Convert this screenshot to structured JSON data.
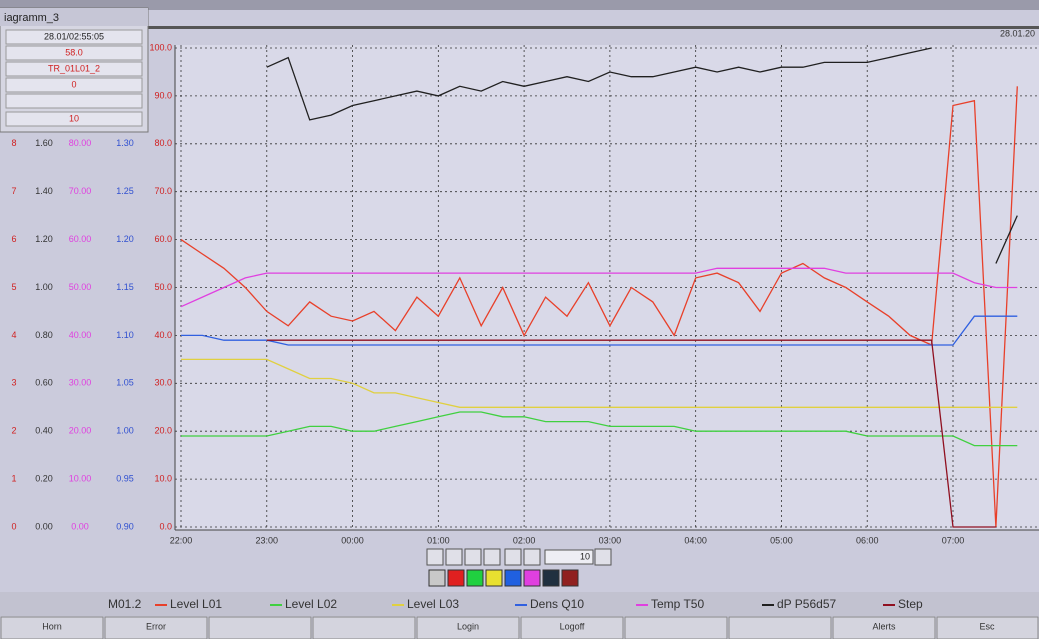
{
  "window": {
    "title": "iagramm_3",
    "cursor_time": "28.01/02:55:05",
    "cursor_value": "58.0",
    "tag": "TR_01L01_2",
    "offset": "0",
    "span": "10",
    "date": "28.01.20"
  },
  "chart_data": {
    "type": "line",
    "x": [
      "22:00",
      "22:15",
      "22:30",
      "22:45",
      "23:00",
      "23:15",
      "23:30",
      "23:45",
      "00:00",
      "00:15",
      "00:30",
      "00:45",
      "01:00",
      "01:15",
      "01:30",
      "01:45",
      "02:00",
      "02:15",
      "02:30",
      "02:45",
      "03:00",
      "03:15",
      "03:30",
      "03:45",
      "04:00",
      "04:15",
      "04:30",
      "04:45",
      "05:00",
      "05:15",
      "05:30",
      "05:45",
      "06:00",
      "06:15",
      "06:30",
      "06:45",
      "07:00",
      "07:15",
      "07:30",
      "07:45"
    ],
    "xticks": [
      "22:00",
      "23:00",
      "00:00",
      "01:00",
      "02:00",
      "03:00",
      "04:00",
      "05:00",
      "06:00",
      "07:00"
    ],
    "ylim": [
      0,
      100
    ],
    "yticks": [
      {
        "value": 0,
        "label": "0.0"
      },
      {
        "value": 10,
        "label": "10.0"
      },
      {
        "value": 20,
        "label": "20.0"
      },
      {
        "value": 30,
        "label": "30.0"
      },
      {
        "value": 40,
        "label": "40.0"
      },
      {
        "value": 50,
        "label": "50.0"
      },
      {
        "value": 60,
        "label": "60.0"
      },
      {
        "value": 70,
        "label": "70.0"
      },
      {
        "value": 80,
        "label": "80.0"
      },
      {
        "value": 90,
        "label": "90.0"
      },
      {
        "value": 100,
        "label": "100.0"
      }
    ],
    "scale_columns": [
      {
        "color": "#d02020",
        "labels": [
          "0",
          "1",
          "2",
          "3",
          "4",
          "5",
          "6",
          "7",
          "8"
        ]
      },
      {
        "color": "#333333",
        "labels": [
          "0.00",
          "0.20",
          "0.40",
          "0.60",
          "0.80",
          "1.00",
          "1.20",
          "1.40",
          "1.60"
        ]
      },
      {
        "color": "#e040e0",
        "labels": [
          "0.00",
          "10.00",
          "20.00",
          "30.00",
          "40.00",
          "50.00",
          "60.00",
          "70.00",
          "80.00"
        ]
      },
      {
        "color": "#3050d0",
        "labels": [
          "0.90",
          "0.95",
          "1.00",
          "1.05",
          "1.10",
          "1.15",
          "1.20",
          "1.25",
          "1.30"
        ]
      }
    ],
    "grid": true,
    "legend_prefix": "M01.2",
    "series": [
      {
        "name": "Level L01",
        "color": "#e8402a",
        "values": [
          60,
          57,
          54,
          50,
          45,
          42,
          47,
          44,
          43,
          45,
          41,
          48,
          44,
          52,
          42,
          50,
          40,
          48,
          44,
          51,
          42,
          50,
          47,
          40,
          52,
          53,
          51,
          45,
          53,
          55,
          52,
          50,
          47,
          44,
          40,
          38,
          88,
          89,
          0,
          92
        ]
      },
      {
        "name": "Level L02",
        "color": "#40d040",
        "values": [
          19,
          19,
          19,
          19,
          19,
          20,
          21,
          21,
          20,
          20,
          21,
          22,
          23,
          24,
          24,
          23,
          23,
          22,
          22,
          22,
          21,
          21,
          21,
          21,
          20,
          20,
          20,
          20,
          20,
          20,
          20,
          20,
          19,
          19,
          19,
          19,
          19,
          17,
          17,
          17
        ]
      },
      {
        "name": "Level L03",
        "color": "#e0d040",
        "values": [
          35,
          35,
          35,
          35,
          35,
          33,
          31,
          31,
          30,
          28,
          28,
          27,
          26,
          25,
          25,
          25,
          25,
          25,
          25,
          25,
          25,
          25,
          25,
          25,
          25,
          25,
          25,
          25,
          25,
          25,
          25,
          25,
          25,
          25,
          25,
          25,
          25,
          25,
          25,
          25
        ]
      },
      {
        "name": "Dens Q10",
        "color": "#3060e0",
        "values": [
          40,
          40,
          39,
          39,
          39,
          38,
          38,
          38,
          38,
          38,
          38,
          38,
          38,
          38,
          38,
          38,
          38,
          38,
          38,
          38,
          38,
          38,
          38,
          38,
          38,
          38,
          38,
          38,
          38,
          38,
          38,
          38,
          38,
          38,
          38,
          38,
          38,
          44,
          44,
          44
        ]
      },
      {
        "name": "Temp T50",
        "color": "#e040e0",
        "values": [
          46,
          48,
          50,
          52,
          53,
          53,
          53,
          53,
          53,
          53,
          53,
          53,
          53,
          53,
          53,
          53,
          53,
          53,
          53,
          53,
          53,
          53,
          53,
          53,
          53,
          54,
          54,
          54,
          54,
          54,
          54,
          53,
          53,
          53,
          53,
          53,
          53,
          51,
          50,
          50
        ]
      },
      {
        "name": "dP P56d57",
        "color": "#202020",
        "values": [
          null,
          null,
          null,
          null,
          96,
          98,
          85,
          86,
          88,
          89,
          90,
          91,
          90,
          92,
          91,
          93,
          92,
          93,
          94,
          93,
          95,
          94,
          94,
          95,
          96,
          95,
          96,
          95,
          96,
          96,
          97,
          97,
          97,
          98,
          99,
          100,
          null,
          null,
          55,
          65
        ]
      },
      {
        "name": "Step",
        "color": "#901020",
        "values": [
          null,
          null,
          null,
          null,
          39,
          39,
          39,
          39,
          39,
          39,
          39,
          39,
          39,
          39,
          39,
          39,
          39,
          39,
          39,
          39,
          39,
          39,
          39,
          39,
          39,
          39,
          39,
          39,
          39,
          39,
          39,
          39,
          39,
          39,
          39,
          39,
          0,
          0,
          0,
          null
        ]
      }
    ]
  },
  "toolbar": {
    "zoom": "10"
  },
  "buttons": {
    "horn": "Horn",
    "error": "Error",
    "login": "Login",
    "logoff": "Logoff",
    "alerts": "Alerts",
    "esc": "Esc"
  }
}
